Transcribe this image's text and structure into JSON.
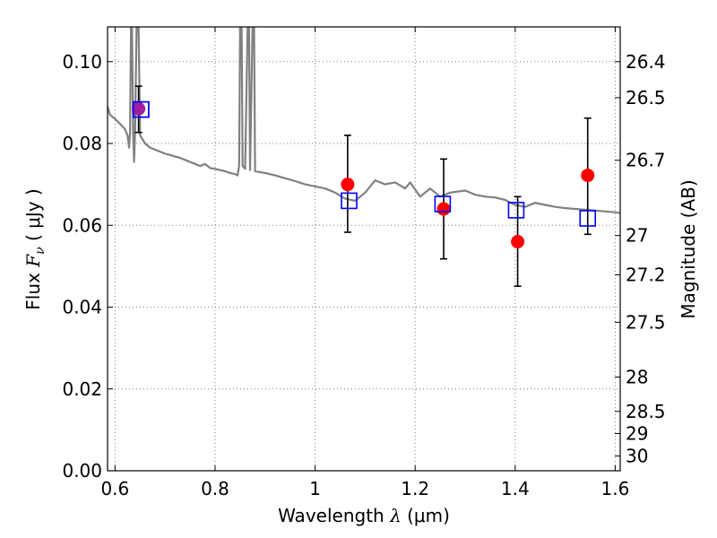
{
  "chart_data": {
    "type": "scatter",
    "title": "",
    "xlabel_parts": {
      "text": "Wavelength  ",
      "symbol": "λ",
      "unit": " (μm)"
    },
    "ylabel_parts": {
      "text": "Flux  ",
      "symbol": "F",
      "subscript": "ν",
      "unit": "  ( μJy )"
    },
    "y2label": "Magnitude (AB)",
    "xlim": [
      0.585,
      1.61
    ],
    "ylim": [
      0.0,
      0.1085
    ],
    "grid": true,
    "x_ticks": [
      0.6,
      0.8,
      1.0,
      1.2,
      1.4,
      1.6
    ],
    "x_tick_labels": [
      "0.6",
      "0.8",
      "1",
      "1.2",
      "1.4",
      "1.6"
    ],
    "y_ticks": [
      0.0,
      0.02,
      0.04,
      0.06,
      0.08,
      0.1
    ],
    "y_tick_labels": [
      "0.00",
      "0.02",
      "0.04",
      "0.06",
      "0.08",
      "0.10"
    ],
    "y2_ticks": [
      {
        "label": "26.4",
        "flux": 0.1
      },
      {
        "label": "26.5",
        "flux": 0.0912
      },
      {
        "label": "26.7",
        "flux": 0.0759
      },
      {
        "label": "27",
        "flux": 0.0575
      },
      {
        "label": "27.2",
        "flux": 0.0479
      },
      {
        "label": "27.5",
        "flux": 0.0363
      },
      {
        "label": "28",
        "flux": 0.0229
      },
      {
        "label": "28.5",
        "flux": 0.0145
      },
      {
        "label": "29",
        "flux": 0.0091
      },
      {
        "label": "30",
        "flux": 0.0036
      }
    ],
    "colors": {
      "model": "#808080",
      "observed": "#ff0000",
      "synthetic": "#0000ff",
      "error": "#000000",
      "grid": "#7f7f7f"
    },
    "series": [
      {
        "type": "line",
        "points": [
          [
            0.585,
            0.089
          ],
          [
            0.59,
            0.087
          ],
          [
            0.6,
            0.086
          ],
          [
            0.61,
            0.0848
          ],
          [
            0.62,
            0.0835
          ],
          [
            0.625,
            0.082
          ],
          [
            0.628,
            0.079
          ],
          [
            0.63,
            0.0825
          ],
          [
            0.632,
            0.1085
          ],
          [
            0.634,
            0.1085
          ],
          [
            0.636,
            0.083
          ],
          [
            0.638,
            0.0755
          ],
          [
            0.64,
            0.083
          ],
          [
            0.643,
            0.1085
          ],
          [
            0.647,
            0.1085
          ],
          [
            0.65,
            0.082
          ],
          [
            0.66,
            0.08
          ],
          [
            0.67,
            0.079
          ],
          [
            0.68,
            0.0785
          ],
          [
            0.69,
            0.078
          ],
          [
            0.7,
            0.0775
          ],
          [
            0.71,
            0.0772
          ],
          [
            0.72,
            0.0768
          ],
          [
            0.73,
            0.0765
          ],
          [
            0.74,
            0.076
          ],
          [
            0.75,
            0.0755
          ],
          [
            0.76,
            0.075
          ],
          [
            0.77,
            0.0745
          ],
          [
            0.78,
            0.075
          ],
          [
            0.79,
            0.074
          ],
          [
            0.8,
            0.0738
          ],
          [
            0.81,
            0.0735
          ],
          [
            0.82,
            0.0732
          ],
          [
            0.83,
            0.0728
          ],
          [
            0.84,
            0.0725
          ],
          [
            0.845,
            0.0722
          ],
          [
            0.848,
            0.0745
          ],
          [
            0.85,
            0.1085
          ],
          [
            0.853,
            0.1085
          ],
          [
            0.855,
            0.0745
          ],
          [
            0.86,
            0.0738
          ],
          [
            0.865,
            0.1085
          ],
          [
            0.868,
            0.1085
          ],
          [
            0.87,
            0.0735
          ],
          [
            0.875,
            0.1085
          ],
          [
            0.878,
            0.1085
          ],
          [
            0.88,
            0.0732
          ],
          [
            0.9,
            0.0728
          ],
          [
            0.92,
            0.0722
          ],
          [
            0.94,
            0.0715
          ],
          [
            0.96,
            0.0708
          ],
          [
            0.98,
            0.07
          ],
          [
            1.0,
            0.0695
          ],
          [
            1.02,
            0.069
          ],
          [
            1.04,
            0.068
          ],
          [
            1.06,
            0.0665
          ],
          [
            1.08,
            0.066
          ],
          [
            1.1,
            0.068
          ],
          [
            1.12,
            0.071
          ],
          [
            1.14,
            0.07
          ],
          [
            1.16,
            0.0705
          ],
          [
            1.18,
            0.069
          ],
          [
            1.19,
            0.0705
          ],
          [
            1.21,
            0.067
          ],
          [
            1.23,
            0.069
          ],
          [
            1.25,
            0.067
          ],
          [
            1.27,
            0.068
          ],
          [
            1.3,
            0.0685
          ],
          [
            1.32,
            0.0675
          ],
          [
            1.34,
            0.067
          ],
          [
            1.36,
            0.0668
          ],
          [
            1.38,
            0.0662
          ],
          [
            1.4,
            0.065
          ],
          [
            1.42,
            0.0645
          ],
          [
            1.44,
            0.0655
          ],
          [
            1.46,
            0.065
          ],
          [
            1.48,
            0.0645
          ],
          [
            1.5,
            0.0642
          ],
          [
            1.52,
            0.064
          ],
          [
            1.54,
            0.0638
          ],
          [
            1.56,
            0.0636
          ],
          [
            1.58,
            0.0634
          ],
          [
            1.6,
            0.0632
          ],
          [
            1.61,
            0.063
          ]
        ]
      },
      {
        "type": "scatter",
        "marker": "circle",
        "x": [
          0.647,
          1.065,
          1.257,
          1.405,
          1.545
        ],
        "y": [
          0.0885,
          0.07,
          0.064,
          0.056,
          0.0722
        ],
        "yerr_low": [
          0.0827,
          0.0583,
          0.0518,
          0.0451,
          0.0578
        ],
        "yerr_high": [
          0.094,
          0.082,
          0.0762,
          0.067,
          0.0862
        ]
      },
      {
        "type": "scatter",
        "marker": "square",
        "x": [
          0.652,
          1.068,
          1.255,
          1.402,
          1.545
        ],
        "y": [
          0.0883,
          0.066,
          0.0652,
          0.0637,
          0.0617
        ]
      }
    ]
  }
}
